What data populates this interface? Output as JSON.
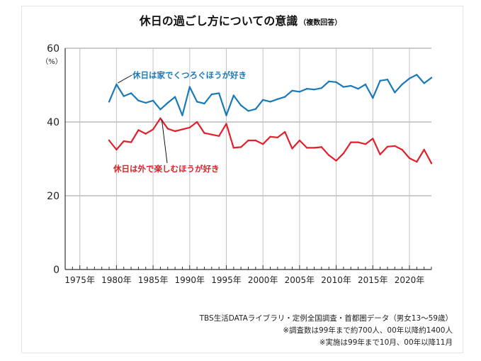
{
  "title": "休日の過ごし方についての意識",
  "subtitle": "（複数回答）",
  "source_lines": [
    "TBS生活DATAライブラリ・定例全国調査・首都圏データ（男女13〜59歳）",
    "※調査数は99年まで約700人、00年以降約1400人",
    "※実施は99年まで10月、00年以降11月"
  ],
  "chart_data": {
    "type": "line",
    "title": "休日の過ごし方についての意識",
    "xlabel": "",
    "ylabel": "（%）",
    "xlim": [
      1973,
      2023
    ],
    "ylim": [
      0,
      60
    ],
    "yticks": [
      0,
      20,
      40,
      60
    ],
    "xticks": [
      1975,
      1980,
      1985,
      1990,
      1995,
      2000,
      2005,
      2010,
      2015,
      2020
    ],
    "xtick_labels": [
      "1975年",
      "1980年",
      "1985年",
      "1990年",
      "1995年",
      "2000年",
      "2005年",
      "2010年",
      "2015年",
      "2020年"
    ],
    "grid": true,
    "x": [
      1979,
      1980,
      1981,
      1982,
      1983,
      1984,
      1985,
      1986,
      1987,
      1988,
      1989,
      1990,
      1991,
      1992,
      1993,
      1994,
      1995,
      1996,
      1997,
      1998,
      1999,
      2000,
      2001,
      2002,
      2003,
      2004,
      2005,
      2006,
      2007,
      2008,
      2009,
      2010,
      2011,
      2012,
      2013,
      2014,
      2015,
      2016,
      2017,
      2018,
      2019,
      2020,
      2021,
      2022,
      2023
    ],
    "series": [
      {
        "name": "休日は家でくつろぐほうが好き",
        "color": "#1a7ab8",
        "values": [
          45.5,
          50.2,
          47.0,
          47.8,
          45.8,
          45.2,
          45.8,
          43.4,
          45.2,
          46.8,
          41.8,
          49.5,
          45.5,
          45.0,
          47.5,
          47.8,
          41.8,
          47.2,
          44.5,
          43.0,
          43.5,
          46.0,
          45.5,
          46.2,
          46.8,
          48.5,
          48.2,
          49.0,
          48.8,
          49.2,
          51.0,
          50.8,
          49.5,
          49.8,
          49.0,
          50.2,
          46.5,
          51.2,
          51.5,
          48.0,
          50.2,
          51.8,
          52.8,
          50.5,
          52.0
        ]
      },
      {
        "name": "休日は外で楽しむほうが好き",
        "color": "#e1202b",
        "values": [
          35.0,
          32.5,
          34.8,
          34.5,
          37.8,
          36.8,
          38.0,
          41.0,
          38.2,
          37.5,
          38.0,
          38.5,
          40.0,
          37.0,
          36.6,
          36.2,
          39.5,
          33.0,
          33.2,
          35.0,
          35.0,
          34.0,
          36.0,
          35.8,
          37.3,
          32.8,
          35.0,
          33.0,
          33.0,
          33.2,
          31.0,
          29.5,
          31.5,
          34.5,
          34.5,
          34.0,
          35.5,
          31.2,
          33.3,
          33.5,
          32.5,
          30.2,
          29.2,
          32.5,
          28.8
        ]
      }
    ]
  }
}
